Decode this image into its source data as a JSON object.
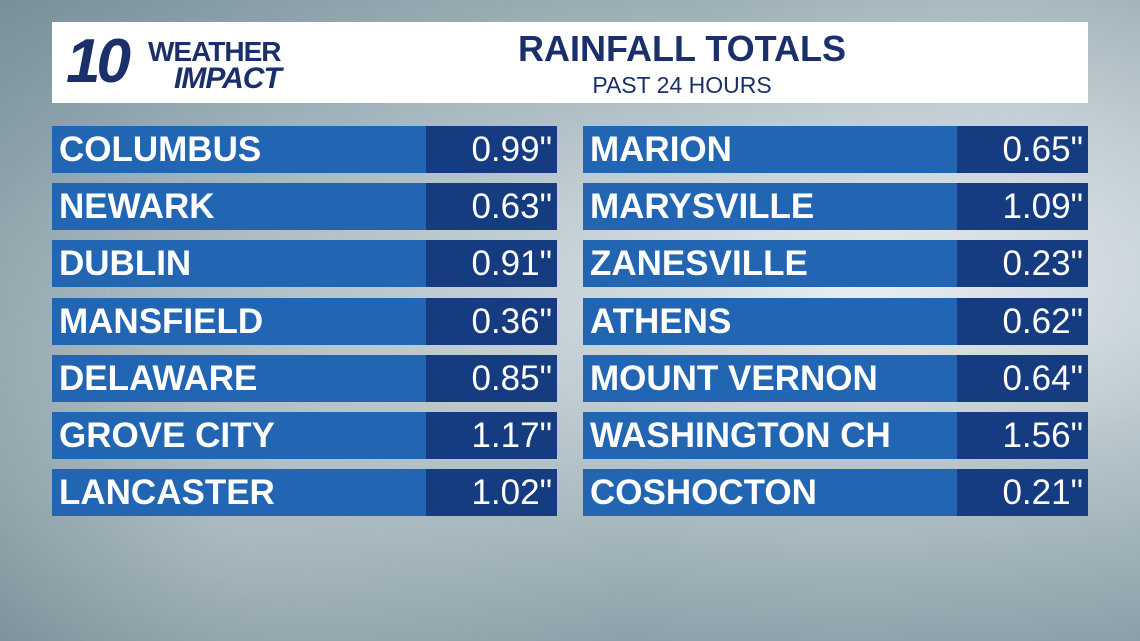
{
  "logo": {
    "number": "10",
    "line1": "WEATHER",
    "line2": "IMPACT"
  },
  "header": {
    "title": "RAINFALL TOTALS",
    "subtitle": "PAST 24 HOURS"
  },
  "table": {
    "left": [
      [
        "COLUMBUS",
        "0.99\""
      ],
      [
        "NEWARK",
        "0.63\""
      ],
      [
        "DUBLIN",
        "0.91\""
      ],
      [
        "MANSFIELD",
        "0.36\""
      ],
      [
        "DELAWARE",
        "0.85\""
      ],
      [
        "GROVE CITY",
        "1.17\""
      ],
      [
        "LANCASTER",
        "1.02\""
      ]
    ],
    "right": [
      [
        "MARION",
        "0.65\""
      ],
      [
        "MARYSVILLE",
        "1.09\""
      ],
      [
        "ZANESVILLE",
        "0.23\""
      ],
      [
        "ATHENS",
        "0.62\""
      ],
      [
        "MOUNT VERNON",
        "0.64\""
      ],
      [
        "WASHINGTON CH",
        "1.56\""
      ],
      [
        "COSHOCTON",
        "0.21\""
      ]
    ]
  }
}
